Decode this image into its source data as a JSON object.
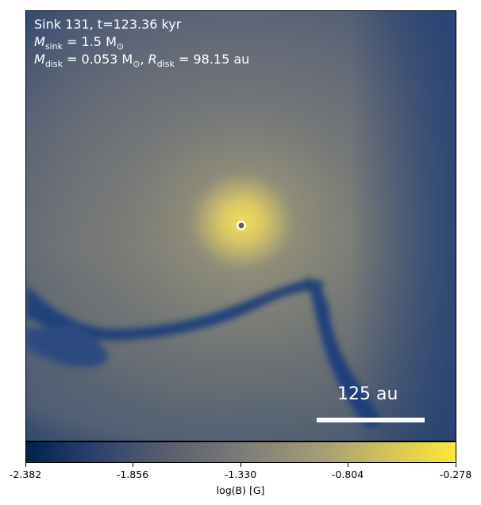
{
  "annotation": {
    "line1": "Sink 131, t=123.36 kyr",
    "msink_symbol": "M",
    "msink_sub": "sink",
    "msink_value": " = 1.5 M",
    "msink_unit_sub": "⊙",
    "mdisk_symbol": "M",
    "mdisk_sub": "disk",
    "mdisk_value": " = 0.053 M",
    "mdisk_unit_sub": "⊙",
    "rdisk_sep": ", ",
    "rdisk_symbol": "R",
    "rdisk_sub": "disk",
    "rdisk_value": " = 98.15 au"
  },
  "scale_bar": {
    "label": "125 au"
  },
  "colorbar": {
    "label": "log(B) [G]",
    "ticks": [
      "-2.382",
      "-1.856",
      "-1.330",
      "-0.804",
      "-0.278"
    ],
    "colors": {
      "low": "#00224e",
      "mid": "#7c7b78",
      "high": "#fee838"
    }
  }
}
